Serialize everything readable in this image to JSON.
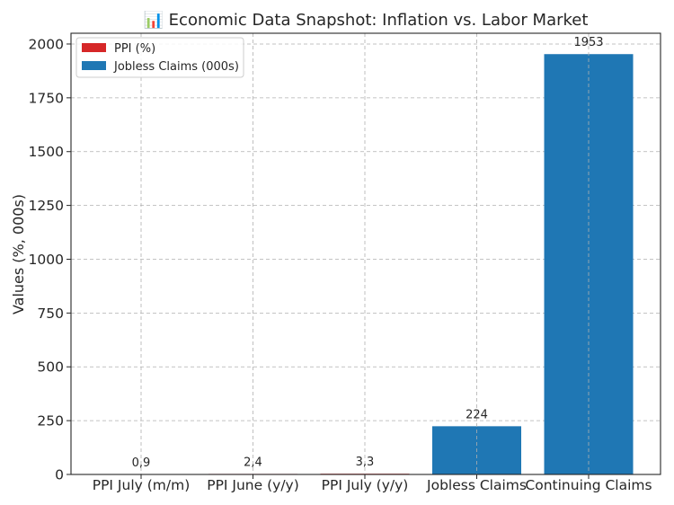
{
  "chart_data": {
    "type": "bar",
    "title": "📊 Economic Data Snapshot: Inflation vs. Labor Market",
    "xlabel": "",
    "ylabel": "Values (%, 000s)",
    "ylim": [
      0,
      2050
    ],
    "yticks": [
      0,
      250,
      500,
      750,
      1000,
      1250,
      1500,
      1750,
      2000
    ],
    "grid": true,
    "legend_position": "top-left",
    "categories": [
      "PPI July (m/m)",
      "PPI June (y/y)",
      "PPI July (y/y)",
      "Jobless Claims",
      "Continuing Claims"
    ],
    "values": [
      0.9,
      2.4,
      3.3,
      224,
      1953
    ],
    "value_labels": [
      "0,9",
      "2,4",
      "3,3",
      "224",
      "1953"
    ],
    "bar_colors": [
      "#d62728",
      "#d62728",
      "#d62728",
      "#1f77b4",
      "#1f77b4"
    ],
    "legend": [
      {
        "label": "PPI (%)",
        "color": "#d62728"
      },
      {
        "label": "Jobless Claims (000s)",
        "color": "#1f77b4"
      }
    ]
  }
}
